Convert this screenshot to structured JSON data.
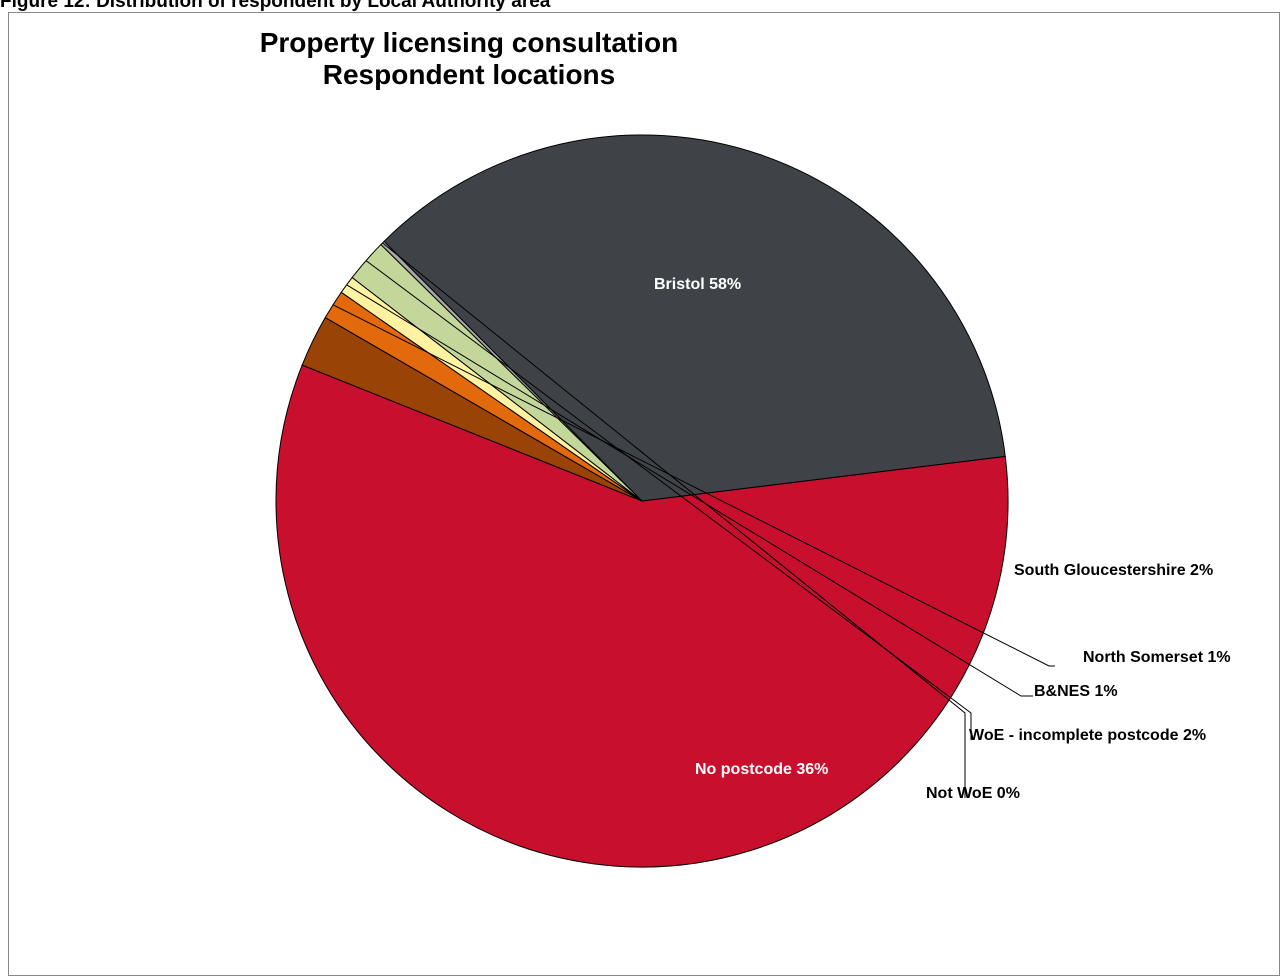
{
  "figure_caption": "Figure 12: Distribution of respondent by Local Authority area",
  "chart_data": {
    "type": "pie",
    "title": "Property licensing consultation",
    "subtitle": "Respondent locations",
    "slices": [
      {
        "label": "Bristol 58%",
        "value": 58,
        "color": "#c8102e"
      },
      {
        "label": "South Gloucestershire 2%",
        "value": 2.3,
        "color": "#9a4306"
      },
      {
        "label": "North Somerset 1%",
        "value": 1.3,
        "color": "#e36a0c"
      },
      {
        "label": "B&NES 1%",
        "value": 0.8,
        "color": "#fff2a0"
      },
      {
        "label": "WoE - incomplete postcode 2%",
        "value": 1.9,
        "color": "#c4d79b"
      },
      {
        "label": "Not WoE 0%",
        "value": 0.2,
        "color": "#a6a6a6"
      },
      {
        "label": "No postcode 36%",
        "value": 35.5,
        "color": "#3f4348"
      }
    ],
    "legend": "none"
  }
}
